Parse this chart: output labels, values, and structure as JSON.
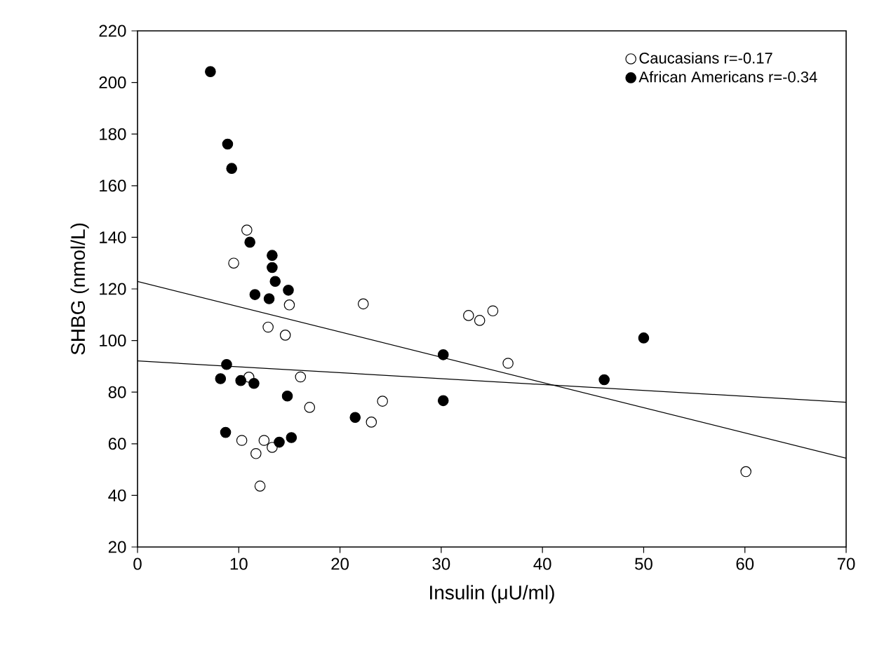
{
  "chart_data": {
    "type": "scatter",
    "xlabel": "Insulin (μU/ml)",
    "ylabel": "SHBG (nmol/L)",
    "xlim": [
      0,
      70
    ],
    "ylim": [
      20,
      220
    ],
    "xticks": [
      0,
      10,
      20,
      30,
      40,
      50,
      60,
      70
    ],
    "yticks": [
      20,
      40,
      60,
      80,
      100,
      120,
      140,
      160,
      180,
      200,
      220
    ],
    "legend": "top right",
    "grid": false,
    "series": [
      {
        "name": "Caucasians r=-0.17",
        "marker": "circle",
        "color": "#ffffff",
        "x": [
          10.8,
          9.5,
          15.0,
          22.3,
          12.9,
          14.6,
          11.0,
          16.1,
          17.0,
          23.1,
          10.3,
          12.5,
          11.7,
          13.3,
          12.1,
          32.7,
          33.8,
          35.1,
          36.6,
          24.2,
          60.1
        ],
        "values": [
          142.8,
          130,
          113.8,
          114.2,
          105.2,
          102.1,
          85.8,
          85.9,
          74.1,
          68.4,
          61.3,
          61.3,
          56.2,
          58.6,
          43.6,
          109.7,
          107.8,
          111.5,
          91.2,
          76.5,
          49.2
        ]
      },
      {
        "name": "African Americans r=-0.34",
        "marker": "circle",
        "color": "#000000",
        "x": [
          7.2,
          8.9,
          9.3,
          11.1,
          13.3,
          13.3,
          13.6,
          14.9,
          11.6,
          13.0,
          8.8,
          8.2,
          10.2,
          11.5,
          14.8,
          21.5,
          8.7,
          14.0,
          15.2,
          30.2,
          30.2,
          46.1,
          50.0
        ],
        "values": [
          204.2,
          176.1,
          166.7,
          138.1,
          133,
          128.3,
          122.9,
          119.5,
          117.8,
          116.2,
          90.7,
          85.2,
          84.5,
          83.4,
          78.5,
          70.2,
          64.4,
          60.6,
          62.4,
          94.5,
          76.7,
          84.8,
          101.0
        ]
      },
      {
        "type": "line",
        "marker": "none",
        "color": "#000000",
        "x": [
          0,
          70
        ],
        "values": [
          122.9,
          54.4
        ]
      },
      {
        "type": "line",
        "marker": "none",
        "color": "#000000",
        "x": [
          0,
          70
        ],
        "values": [
          92.1,
          76.1
        ]
      }
    ]
  }
}
